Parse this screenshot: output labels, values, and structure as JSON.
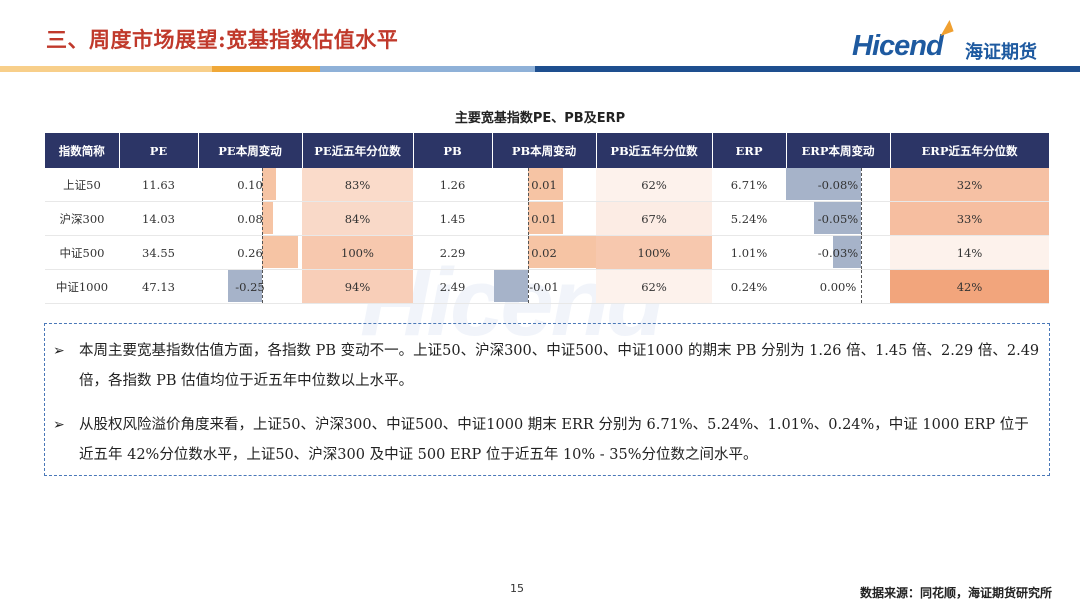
{
  "header": {
    "title": "三、周度市场展望:宽基指数估值水平"
  },
  "logo": {
    "en": "Hicend",
    "cn": "海证期货",
    "reg": "®"
  },
  "table": {
    "title": "主要宽基指数PE、PB及ERP",
    "columns": [
      "指数简称",
      "PE",
      "PE本周变动",
      "PE近五年分位数",
      "PB",
      "PB本周变动",
      "PB近五年分位数",
      "ERP",
      "ERP本周变动",
      "ERP近五年分位数"
    ],
    "rows": [
      {
        "name": "上证50",
        "pe": "11.63",
        "pe_chg": "0.10",
        "pe_pct": "83%",
        "pb": "1.26",
        "pb_chg": "0.01",
        "pb_pct": "62%",
        "erp": "6.71%",
        "erp_chg": "-0.08%",
        "erp_pct": "32%"
      },
      {
        "name": "沪深300",
        "pe": "14.03",
        "pe_chg": "0.08",
        "pe_pct": "84%",
        "pb": "1.45",
        "pb_chg": "0.01",
        "pb_pct": "67%",
        "erp": "5.24%",
        "erp_chg": "-0.05%",
        "erp_pct": "33%"
      },
      {
        "name": "中证500",
        "pe": "34.55",
        "pe_chg": "0.26",
        "pe_pct": "100%",
        "pb": "2.29",
        "pb_chg": "0.02",
        "pb_pct": "100%",
        "erp": "1.01%",
        "erp_chg": "-0.03%",
        "erp_pct": "14%"
      },
      {
        "name": "中证1000",
        "pe": "47.13",
        "pe_chg": "-0.25",
        "pe_pct": "94%",
        "pb": "2.49",
        "pb_chg": "-0.01",
        "pb_pct": "62%",
        "erp": "0.24%",
        "erp_chg": "0.00%",
        "erp_pct": "42%"
      }
    ],
    "bar_levels": {
      "pe_chg": [
        0.1,
        0.08,
        0.26,
        -0.25
      ],
      "pb_chg": [
        0.01,
        0.01,
        0.02,
        -0.01
      ],
      "erp_chg": [
        -0.08,
        -0.05,
        -0.03,
        0.0
      ]
    },
    "pct_levels": {
      "pe_pct": [
        0.83,
        0.84,
        1.0,
        0.94
      ],
      "pb_pct": [
        0.62,
        0.67,
        1.0,
        0.62
      ],
      "erp_pct": [
        0.32,
        0.33,
        0.14,
        0.42
      ]
    },
    "colors": {
      "header_bg": "#2c3566",
      "positive_bar": "#f6c4a4",
      "negative_bar": "#a6b3c9",
      "heat_low": "#fdf2ec",
      "heat_high": "#f2a57c"
    }
  },
  "watermark": "Hicend",
  "notes": [
    "本周主要宽基指数估值方面，各指数 PB 变动不一。上证50、沪深300、中证500、中证1000 的期末 PB 分别为 1.26 倍、1.45 倍、2.29 倍、2.49 倍，各指数 PB 估值均位于近五年中位数以上水平。",
    "从股权风险溢价角度来看，上证50、沪深300、中证500、中证1000 期末 ERR 分别为 6.71%、5.24%、1.01%、0.24%，中证 1000 ERP 位于近五年 42%分位数水平，上证50、沪深300 及中证 500 ERP 位于近五年 10% - 35%分位数之间水平。"
  ],
  "footer": {
    "page": "15",
    "source": "数据来源：同花顺，海证期货研究所"
  }
}
